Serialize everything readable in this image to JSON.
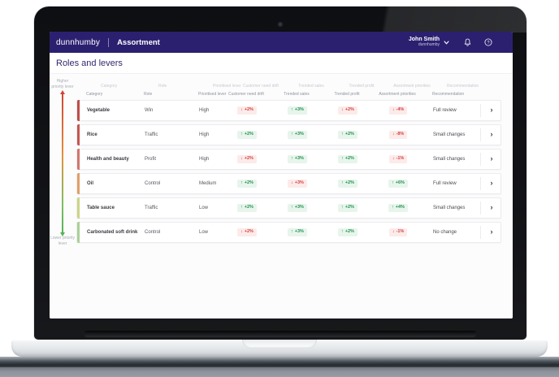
{
  "appbar": {
    "brand": "dunnhumby",
    "product": "Assortment",
    "user": {
      "name": "John Smith",
      "org": "dunnhumby"
    },
    "icons": [
      "chevron-down-icon",
      "bell-icon",
      "help-icon"
    ]
  },
  "page": {
    "title": "Roles and levers"
  },
  "priority_axis": {
    "top_label": "Higher priority lever",
    "bottom_label": "Lower priority lever",
    "gradient": [
      "#cf4335",
      "#e2913f",
      "#7cbf63",
      "#54b25a"
    ]
  },
  "table": {
    "columns": [
      "Category",
      "Role",
      "Prioritised lever",
      "Customer need drift",
      "Trended sales",
      "Trended profit",
      "Assortment priorities",
      "Recommendation"
    ],
    "rows": [
      {
        "category": "Vegetable",
        "role": "Win",
        "prioritised_lever": "High",
        "edge_color": "#bf4d47",
        "customer_need_drift": {
          "direction": "down",
          "tone": "negative",
          "value": "+2%"
        },
        "trended_sales": {
          "direction": "up",
          "tone": "positive",
          "value": "+3%"
        },
        "trended_profit": {
          "direction": "down",
          "tone": "negative",
          "value": "+2%"
        },
        "assortment_priorities": {
          "direction": "down",
          "tone": "negative",
          "value": "-4%"
        },
        "recommendation": "Full review"
      },
      {
        "category": "Rice",
        "role": "Traffic",
        "prioritised_lever": "High",
        "edge_color": "#c6564e",
        "customer_need_drift": {
          "direction": "up",
          "tone": "positive",
          "value": "+2%"
        },
        "trended_sales": {
          "direction": "up",
          "tone": "positive",
          "value": "+3%"
        },
        "trended_profit": {
          "direction": "up",
          "tone": "positive",
          "value": "+2%"
        },
        "assortment_priorities": {
          "direction": "down",
          "tone": "negative",
          "value": "-8%"
        },
        "recommendation": "Small changes"
      },
      {
        "category": "Health and beauty",
        "role": "Profit",
        "prioritised_lever": "High",
        "edge_color": "#d2766a",
        "customer_need_drift": {
          "direction": "down",
          "tone": "negative",
          "value": "+2%"
        },
        "trended_sales": {
          "direction": "up",
          "tone": "positive",
          "value": "+3%"
        },
        "trended_profit": {
          "direction": "up",
          "tone": "positive",
          "value": "+2%"
        },
        "assortment_priorities": {
          "direction": "down",
          "tone": "negative",
          "value": "-1%"
        },
        "recommendation": "Small changes"
      },
      {
        "category": "Oil",
        "role": "Control",
        "prioritised_lever": "Medium",
        "edge_color": "#e29e67",
        "customer_need_drift": {
          "direction": "up",
          "tone": "positive",
          "value": "+2%"
        },
        "trended_sales": {
          "direction": "down",
          "tone": "negative",
          "value": "+3%"
        },
        "trended_profit": {
          "direction": "up",
          "tone": "positive",
          "value": "+2%"
        },
        "assortment_priorities": {
          "direction": "up",
          "tone": "positive",
          "value": "+6%"
        },
        "recommendation": "Full review"
      },
      {
        "category": "Table sauce",
        "role": "Traffic",
        "prioritised_lever": "Low",
        "edge_color": "#ccd584",
        "customer_need_drift": {
          "direction": "up",
          "tone": "positive",
          "value": "+2%"
        },
        "trended_sales": {
          "direction": "up",
          "tone": "positive",
          "value": "+3%"
        },
        "trended_profit": {
          "direction": "up",
          "tone": "positive",
          "value": "+2%"
        },
        "assortment_priorities": {
          "direction": "up",
          "tone": "positive",
          "value": "+4%"
        },
        "recommendation": "Small changes"
      },
      {
        "category": "Carbonated soft drink",
        "role": "Control",
        "prioritised_lever": "Low",
        "edge_color": "#a9d297",
        "customer_need_drift": {
          "direction": "down",
          "tone": "negative",
          "value": "+2%"
        },
        "trended_sales": {
          "direction": "up",
          "tone": "positive",
          "value": "+3%"
        },
        "trended_profit": {
          "direction": "up",
          "tone": "positive",
          "value": "+2%"
        },
        "assortment_priorities": {
          "direction": "down",
          "tone": "negative",
          "value": "-1%"
        },
        "recommendation": "No change"
      }
    ]
  },
  "colors": {
    "appbar_bg": "#2b2070",
    "title_text": "#322a6f",
    "badge_positive": "#23914f",
    "badge_negative": "#d6423d"
  }
}
